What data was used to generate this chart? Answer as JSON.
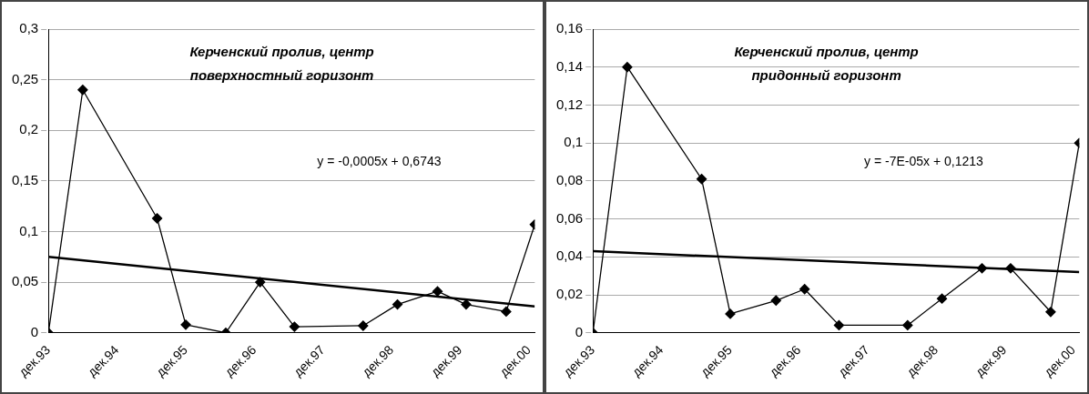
{
  "chart_data": [
    {
      "type": "line",
      "title": "Керченский пролив, центр\nповерхностный горизонт",
      "annotations": [
        "y = -0,0005x + 0,6743"
      ],
      "marker": "diamond",
      "grid": "y",
      "legend": false,
      "xlim": [
        "1993-12",
        "2001-01"
      ],
      "xticks": [
        {
          "value": "1993-12",
          "label": "дек.93"
        },
        {
          "value": "1994-12",
          "label": "дек.94"
        },
        {
          "value": "1995-12",
          "label": "дек.95"
        },
        {
          "value": "1996-12",
          "label": "дек.96"
        },
        {
          "value": "1997-12",
          "label": "дек.97"
        },
        {
          "value": "1998-12",
          "label": "дек.98"
        },
        {
          "value": "1999-12",
          "label": "дек.99"
        },
        {
          "value": "2000-12",
          "label": "дек.00"
        }
      ],
      "ylim": [
        0,
        0.3
      ],
      "yticks": [
        {
          "value": 0,
          "label": "0"
        },
        {
          "value": 0.05,
          "label": "0,05"
        },
        {
          "value": 0.1,
          "label": "0,1"
        },
        {
          "value": 0.15,
          "label": "0,15"
        },
        {
          "value": 0.2,
          "label": "0,2"
        },
        {
          "value": 0.25,
          "label": "0,25"
        },
        {
          "value": 0.3,
          "label": "0,3"
        }
      ],
      "series": [
        {
          "color": "#000000",
          "x": [
            "1993-12",
            "1994-06",
            "1995-07",
            "1995-12",
            "1996-07",
            "1997-01",
            "1997-07",
            "1998-07",
            "1999-01",
            "1999-08",
            "2000-01",
            "2000-08",
            "2001-01"
          ],
          "values": [
            0,
            0.24,
            0.113,
            0.008,
            0,
            0.05,
            0.006,
            0.007,
            0.028,
            0.041,
            0.028,
            0.021,
            0.107
          ]
        },
        {
          "type": "line",
          "marker": "none",
          "color": "#000000",
          "x": [
            "1993-12",
            "2001-01"
          ],
          "values": [
            0.075,
            0.026
          ]
        }
      ]
    },
    {
      "type": "line",
      "title": "Керченский пролив, центр\nпридонный горизонт",
      "annotations": [
        "y = -7E-05x + 0,1213"
      ],
      "marker": "diamond",
      "grid": "y",
      "legend": false,
      "xlim": [
        "1993-12",
        "2001-01"
      ],
      "xticks": [
        {
          "value": "1993-12",
          "label": "дек.93"
        },
        {
          "value": "1994-12",
          "label": "дек.94"
        },
        {
          "value": "1995-12",
          "label": "дек.95"
        },
        {
          "value": "1996-12",
          "label": "дек.96"
        },
        {
          "value": "1997-12",
          "label": "дек.97"
        },
        {
          "value": "1998-12",
          "label": "дек.98"
        },
        {
          "value": "1999-12",
          "label": "дек.99"
        },
        {
          "value": "2000-12",
          "label": "дек.00"
        }
      ],
      "ylim": [
        0,
        0.16
      ],
      "yticks": [
        {
          "value": 0,
          "label": "0"
        },
        {
          "value": 0.02,
          "label": "0,02"
        },
        {
          "value": 0.04,
          "label": "0,04"
        },
        {
          "value": 0.06,
          "label": "0,06"
        },
        {
          "value": 0.08,
          "label": "0,08"
        },
        {
          "value": 0.1,
          "label": "0,1"
        },
        {
          "value": 0.12,
          "label": "0,12"
        },
        {
          "value": 0.14,
          "label": "0,14"
        },
        {
          "value": 0.16,
          "label": "0,16"
        }
      ],
      "series": [
        {
          "color": "#000000",
          "x": [
            "1993-12",
            "1994-06",
            "1995-07",
            "1995-12",
            "1996-08",
            "1997-01",
            "1997-07",
            "1998-07",
            "1999-01",
            "1999-08",
            "2000-01",
            "2000-08",
            "2001-01"
          ],
          "values": [
            0,
            0.14,
            0.081,
            0.01,
            0.017,
            0.023,
            0.004,
            0.004,
            0.018,
            0.034,
            0.034,
            0.011,
            0.1
          ]
        },
        {
          "type": "line",
          "marker": "none",
          "color": "#000000",
          "x": [
            "1993-12",
            "2001-01"
          ],
          "values": [
            0.043,
            0.032
          ]
        }
      ]
    }
  ]
}
